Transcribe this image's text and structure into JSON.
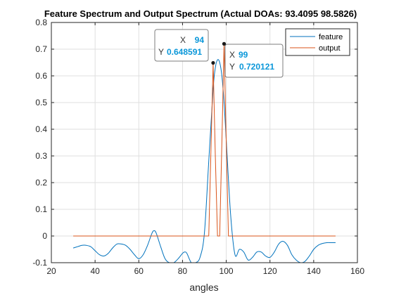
{
  "chart_data": {
    "type": "line",
    "title": "Feature Spectrum and Output Spectrum (Actual DOAs: 93.4095 98.5826)",
    "xlabel": "angles",
    "ylabel": "",
    "xlim": [
      20,
      160
    ],
    "ylim": [
      -0.1,
      0.8
    ],
    "xticks": [
      20,
      40,
      60,
      80,
      100,
      120,
      140,
      160
    ],
    "yticks": [
      -0.1,
      0,
      0.1,
      0.2,
      0.3,
      0.4,
      0.5,
      0.6,
      0.7,
      0.8
    ],
    "xtick_labels": [
      "20",
      "40",
      "60",
      "80",
      "100",
      "120",
      "140",
      "160"
    ],
    "ytick_labels": [
      "-0.1",
      "0",
      "0.1",
      "0.2",
      "0.3",
      "0.4",
      "0.5",
      "0.6",
      "0.7",
      "0.8"
    ],
    "grid": true,
    "legend_position": "top-right",
    "series": [
      {
        "name": "feature",
        "color": "#0072BD",
        "x": [
          30,
          32,
          34,
          36,
          38,
          40,
          42,
          44,
          46,
          48,
          50,
          52,
          54,
          56,
          58,
          60,
          62,
          64,
          66,
          67,
          68,
          70,
          72,
          74,
          76,
          78,
          80,
          81,
          82,
          84,
          86,
          88,
          90,
          92,
          94,
          95,
          96,
          97,
          98,
          99,
          100,
          102,
          104,
          106,
          108,
          110,
          112,
          114,
          116,
          118,
          120,
          122,
          124,
          126,
          128,
          130,
          132,
          134,
          136,
          138,
          140,
          142,
          144,
          146,
          148,
          150
        ],
        "y": [
          -0.045,
          -0.04,
          -0.035,
          -0.035,
          -0.04,
          -0.055,
          -0.07,
          -0.075,
          -0.065,
          -0.045,
          -0.03,
          -0.03,
          -0.035,
          -0.05,
          -0.07,
          -0.085,
          -0.07,
          -0.035,
          0.01,
          0.02,
          0.01,
          -0.04,
          -0.085,
          -0.1,
          -0.1,
          -0.085,
          -0.065,
          -0.06,
          -0.065,
          -0.1,
          -0.1,
          -0.08,
          0.01,
          0.28,
          0.55,
          0.63,
          0.66,
          0.65,
          0.6,
          0.5,
          0.36,
          0.08,
          -0.07,
          -0.05,
          -0.06,
          -0.09,
          -0.08,
          -0.06,
          -0.06,
          -0.075,
          -0.08,
          -0.06,
          -0.03,
          -0.02,
          -0.035,
          -0.07,
          -0.09,
          -0.1,
          -0.095,
          -0.075,
          -0.05,
          -0.035,
          -0.028,
          -0.025,
          -0.025,
          -0.025
        ]
      },
      {
        "name": "output",
        "color": "#D95319",
        "x": [
          30,
          92,
          93,
          94,
          95,
          96,
          97,
          98,
          99,
          100,
          101,
          150
        ],
        "y": [
          0,
          0,
          0.32,
          0.648591,
          0.3,
          0,
          0,
          0.35,
          0.720121,
          0.35,
          0,
          0
        ]
      }
    ],
    "datatips": [
      {
        "x": 94,
        "y": 0.648591,
        "x_label": "X",
        "y_label": "Y",
        "x_text": "94",
        "y_text": "0.648591"
      },
      {
        "x": 99,
        "y": 0.720121,
        "x_label": "X",
        "y_label": "Y",
        "x_text": "99",
        "y_text": "0.720121"
      }
    ]
  }
}
